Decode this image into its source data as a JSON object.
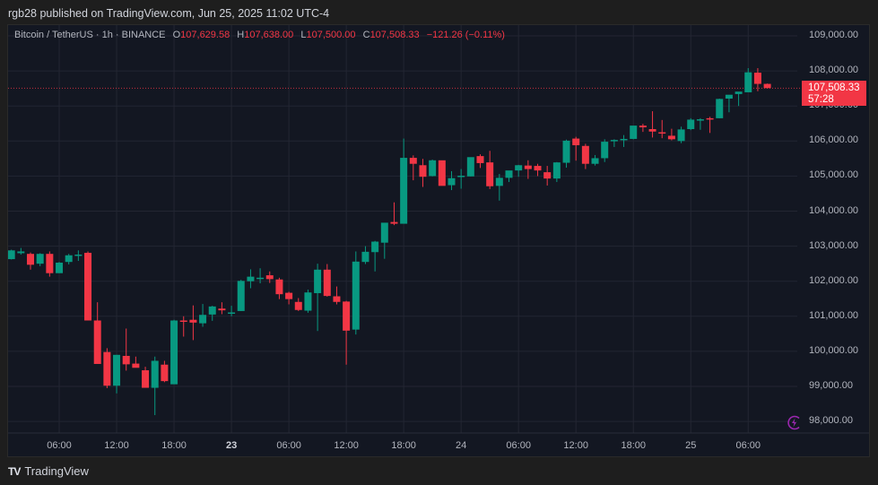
{
  "attribution": "rgb28 published on TradingView.com, Jun 25, 2025 11:02 UTC-4",
  "legend": {
    "symbol": "Bitcoin / TetherUS · 1h · BINANCE",
    "o_label": "O",
    "o": "107,629.58",
    "h_label": "H",
    "h": "107,638.00",
    "l_label": "L",
    "l": "107,500.00",
    "c_label": "C",
    "c": "107,508.33",
    "change": "−121.26 (−0.11%)"
  },
  "price_tag": {
    "price": "107,508.33",
    "countdown": "57:28"
  },
  "footer": {
    "brand": "TradingView",
    "mark": "TV"
  },
  "colors": {
    "up": "#089981",
    "down": "#f23645",
    "bg": "#131722",
    "grid": "#232632",
    "text": "#b2b5be",
    "alert": "#9c27b0"
  },
  "chart_data": {
    "type": "candlestick",
    "title": "Bitcoin / TetherUS · 1h · BINANCE",
    "xlabel": "",
    "ylabel": "",
    "ylim": [
      97500,
      109400
    ],
    "y_ticks": [
      "109,000.00",
      "108,000.00",
      "107,000.00",
      "106,000.00",
      "105,000.00",
      "104,000.00",
      "103,000.00",
      "102,000.00",
      "101,000.00",
      "100,000.00",
      "99,000.00",
      "98,000.00"
    ],
    "x_ticks": [
      {
        "label": "06:00",
        "hour": 6
      },
      {
        "label": "12:00",
        "hour": 12
      },
      {
        "label": "18:00",
        "hour": 18
      },
      {
        "label": "23",
        "hour": 24,
        "bold": true
      },
      {
        "label": "06:00",
        "hour": 30
      },
      {
        "label": "12:00",
        "hour": 36
      },
      {
        "label": "18:00",
        "hour": 42
      },
      {
        "label": "24",
        "hour": 48
      },
      {
        "label": "06:00",
        "hour": 54
      },
      {
        "label": "12:00",
        "hour": 60
      },
      {
        "label": "18:00",
        "hour": 66
      },
      {
        "label": "25",
        "hour": 72
      },
      {
        "label": "06:00",
        "hour": 78
      }
    ],
    "last_price": 107508.33,
    "grid": true,
    "candles_ohlc": [
      [
        102630,
        102900,
        102620,
        102880
      ],
      [
        102800,
        102950,
        102760,
        102850
      ],
      [
        102780,
        102820,
        102330,
        102470
      ],
      [
        102500,
        102800,
        102430,
        102780
      ],
      [
        102780,
        102850,
        102130,
        102230
      ],
      [
        102230,
        102550,
        102230,
        102530
      ],
      [
        102550,
        102780,
        102480,
        102740
      ],
      [
        102750,
        102880,
        102580,
        102760
      ],
      [
        102810,
        102850,
        100950,
        100880
      ],
      [
        100880,
        101400,
        99800,
        99640
      ],
      [
        99980,
        100090,
        98950,
        99020
      ],
      [
        99020,
        99900,
        98800,
        99900
      ],
      [
        99870,
        100650,
        99450,
        99630
      ],
      [
        99650,
        99850,
        99550,
        99530
      ],
      [
        99460,
        99560,
        99030,
        98960
      ],
      [
        98960,
        99850,
        98180,
        99730
      ],
      [
        99620,
        99730,
        99120,
        99150
      ],
      [
        99060,
        100900,
        99080,
        100880
      ],
      [
        100880,
        101000,
        100420,
        100870
      ],
      [
        100900,
        101310,
        100320,
        100820
      ],
      [
        100800,
        101350,
        100700,
        101040
      ],
      [
        101050,
        101300,
        100870,
        101280
      ],
      [
        101220,
        101400,
        101060,
        101170
      ],
      [
        101080,
        101300,
        101000,
        101110
      ],
      [
        101150,
        102040,
        101150,
        102010
      ],
      [
        102000,
        102340,
        101800,
        102130
      ],
      [
        102100,
        102370,
        101940,
        102100
      ],
      [
        102170,
        102280,
        101950,
        102060
      ],
      [
        102050,
        102100,
        101490,
        101630
      ],
      [
        101670,
        101700,
        101340,
        101490
      ],
      [
        101410,
        101520,
        101150,
        101180
      ],
      [
        101160,
        101760,
        101100,
        101680
      ],
      [
        101660,
        102500,
        100580,
        102330
      ],
      [
        102330,
        102490,
        101560,
        101580
      ],
      [
        101570,
        101850,
        101340,
        101410
      ],
      [
        101420,
        101440,
        99620,
        100590
      ],
      [
        100620,
        102850,
        100480,
        102560
      ],
      [
        102550,
        103000,
        102490,
        102840
      ],
      [
        102830,
        103150,
        102280,
        103130
      ],
      [
        103100,
        103430,
        102640,
        103670
      ],
      [
        103690,
        104250,
        103600,
        103640
      ],
      [
        103640,
        106070,
        103650,
        105520
      ],
      [
        105520,
        105590,
        104880,
        105350
      ],
      [
        105310,
        105490,
        104690,
        104980
      ],
      [
        105000,
        105470,
        104990,
        105450
      ],
      [
        105450,
        105420,
        104740,
        104720
      ],
      [
        104740,
        105140,
        104600,
        104940
      ],
      [
        104990,
        105200,
        104640,
        105010
      ],
      [
        104990,
        105500,
        104990,
        105540
      ],
      [
        105570,
        105620,
        105230,
        105370
      ],
      [
        105390,
        105720,
        104630,
        104710
      ],
      [
        104720,
        105060,
        104300,
        104950
      ],
      [
        104950,
        105100,
        104830,
        105160
      ],
      [
        105160,
        105320,
        104980,
        105310
      ],
      [
        105300,
        105450,
        104920,
        105200
      ],
      [
        105290,
        105350,
        105000,
        105160
      ],
      [
        105110,
        105290,
        104730,
        104930
      ],
      [
        104930,
        105400,
        104830,
        105390
      ],
      [
        105380,
        106040,
        105240,
        106010
      ],
      [
        106070,
        106120,
        105440,
        105880
      ],
      [
        105860,
        105920,
        105200,
        105350
      ],
      [
        105350,
        105600,
        105300,
        105510
      ],
      [
        105510,
        106050,
        105400,
        105980
      ],
      [
        106000,
        106050,
        105830,
        106030
      ],
      [
        106030,
        106170,
        105830,
        106060
      ],
      [
        106060,
        106400,
        106050,
        106440
      ],
      [
        106440,
        106490,
        106260,
        106390
      ],
      [
        106340,
        106850,
        106100,
        106270
      ],
      [
        106250,
        106600,
        106080,
        106220
      ],
      [
        106150,
        106350,
        106020,
        106050
      ],
      [
        106000,
        106410,
        105940,
        106330
      ],
      [
        106340,
        106650,
        106310,
        106610
      ],
      [
        106620,
        106650,
        106320,
        106620
      ],
      [
        106650,
        106690,
        106230,
        106640
      ],
      [
        106650,
        107210,
        106650,
        107200
      ],
      [
        107210,
        107300,
        106820,
        107320
      ],
      [
        107340,
        107380,
        107000,
        107410
      ],
      [
        107390,
        108080,
        107390,
        107960
      ],
      [
        107950,
        108080,
        107420,
        107630
      ],
      [
        107630,
        107640,
        107500,
        107510
      ]
    ]
  }
}
